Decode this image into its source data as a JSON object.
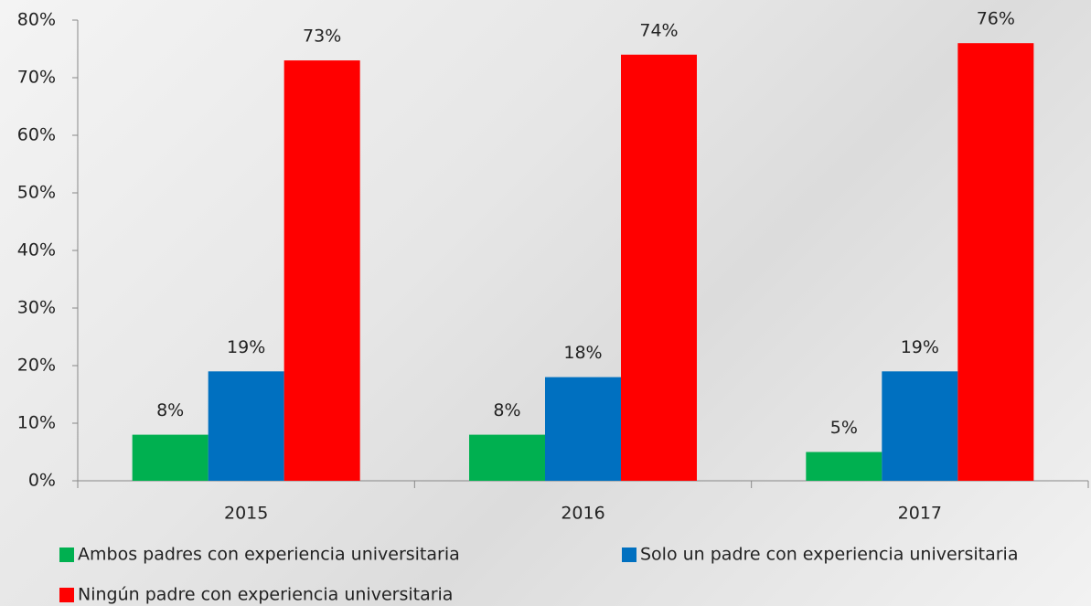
{
  "chart_data": {
    "type": "bar",
    "categories": [
      "2015",
      "2016",
      "2017"
    ],
    "series": [
      {
        "name": "Ambos padres con experiencia universitaria",
        "color": "#00b050",
        "values": [
          8,
          8,
          5
        ],
        "value_labels": [
          "8%",
          "8%",
          "5%"
        ]
      },
      {
        "name": "Solo un padre con experiencia universitaria",
        "color": "#0070c0",
        "values": [
          19,
          18,
          19
        ],
        "value_labels": [
          "19%",
          "18%",
          "19%"
        ]
      },
      {
        "name": "Ningún padre con experiencia universitaria",
        "color": "#ff0000",
        "values": [
          73,
          74,
          76
        ],
        "value_labels": [
          "73%",
          "74%",
          "76%"
        ]
      }
    ],
    "ylim": [
      0,
      80
    ],
    "yticks": [
      {
        "value": 0,
        "label": "0%"
      },
      {
        "value": 10,
        "label": "10%"
      },
      {
        "value": 20,
        "label": "20%"
      },
      {
        "value": 30,
        "label": "30%"
      },
      {
        "value": 40,
        "label": "40%"
      },
      {
        "value": 50,
        "label": "50%"
      },
      {
        "value": 60,
        "label": "60%"
      },
      {
        "value": 70,
        "label": "70%"
      },
      {
        "value": 80,
        "label": "80%"
      }
    ],
    "grid": false
  }
}
